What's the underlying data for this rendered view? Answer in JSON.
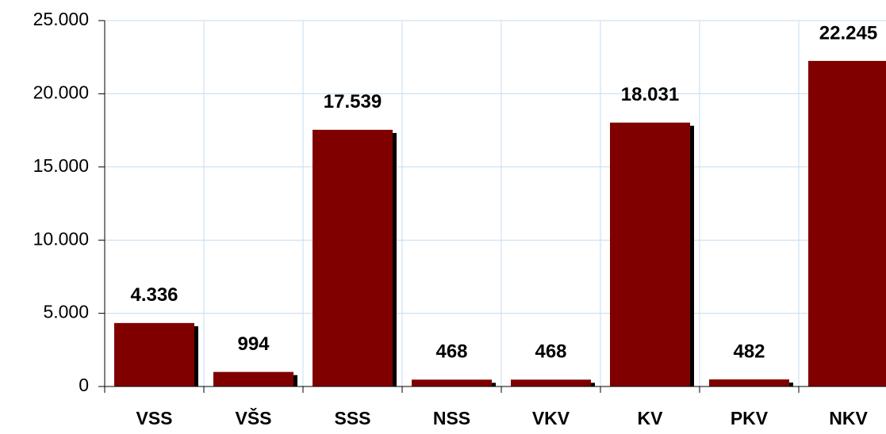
{
  "chart_data": {
    "type": "bar",
    "categories": [
      "VSS",
      "VŠS",
      "SSS",
      "NSS",
      "VKV",
      "KV",
      "PKV",
      "NKV"
    ],
    "values": [
      4336,
      994,
      17539,
      468,
      468,
      18031,
      482,
      22245
    ],
    "value_labels": [
      "4.336",
      "994",
      "17.539",
      "468",
      "468",
      "18.031",
      "482",
      "22.245"
    ],
    "color": "#800000",
    "ylim": [
      0,
      25000
    ],
    "yticks": [
      0,
      {
        "value": 5000,
        "label": "5.000"
      },
      {
        "value": 10000,
        "label": "10.000"
      },
      {
        "value": 15000,
        "label": "15.000"
      },
      {
        "value": 20000,
        "label": "20.000"
      },
      {
        "value": 25000,
        "label": "25.000"
      }
    ],
    "grid": true
  }
}
